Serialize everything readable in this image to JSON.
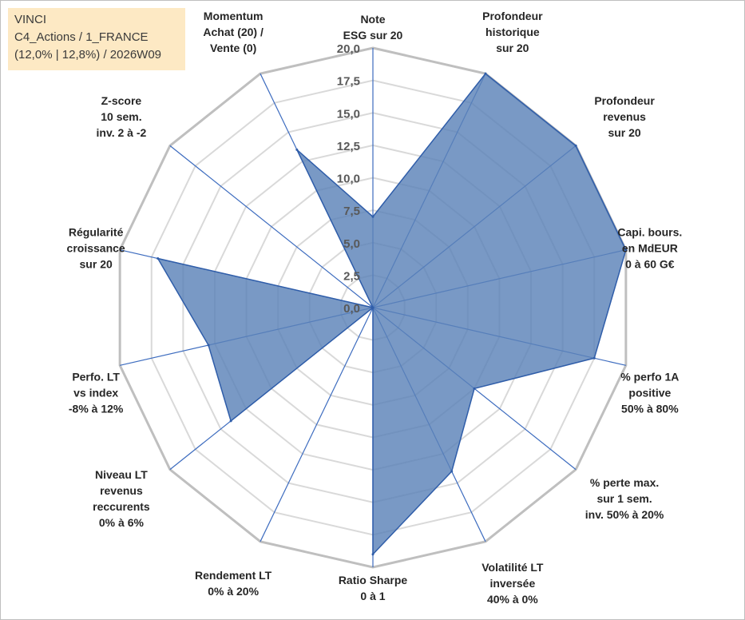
{
  "header": {
    "line1": "VINCI",
    "line2": "C4_Actions / 1_FRANCE",
    "line3": "(12,0% | 12,8%) / 2026W09"
  },
  "colors": {
    "fill": "#5b82b8",
    "stroke": "#2f5da9",
    "grid_outer": "#bfbfbf",
    "grid_inner": "#d9d9d9",
    "spoke": "#3d6cbf"
  },
  "chart_data": {
    "type": "radar",
    "title": "",
    "rmin": 0,
    "rmax": 20,
    "ticks": [
      "0,0",
      "2,5",
      "5,0",
      "7,5",
      "10,0",
      "12,5",
      "15,0",
      "17,5",
      "20,0"
    ],
    "axes": [
      {
        "label": [
          "Note",
          "ESG sur 20"
        ],
        "value": 7
      },
      {
        "label": [
          "Profondeur",
          "historique",
          "sur 20"
        ],
        "value": 20
      },
      {
        "label": [
          "Profondeur",
          "revenus",
          "sur 20"
        ],
        "value": 20
      },
      {
        "label": [
          "Capi. bours.",
          "en MdEUR",
          "0 à 60 G€"
        ],
        "value": 20
      },
      {
        "label": [
          "% perfo 1A",
          "positive",
          "50% à 80%"
        ],
        "value": 17.5
      },
      {
        "label": [
          "% perte max.",
          "sur 1 sem.",
          "inv. 50% à 20%"
        ],
        "value": 10
      },
      {
        "label": [
          "Volatilité LT",
          "inversée",
          "40% à 0%"
        ],
        "value": 14
      },
      {
        "label": [
          "Ratio Sharpe",
          "0 à 1"
        ],
        "value": 19
      },
      {
        "label": [
          "Rendement LT",
          "0% à 20%"
        ],
        "value": 0
      },
      {
        "label": [
          "Niveau LT",
          "revenus",
          "reccurents",
          "0% à 6%"
        ],
        "value": 14
      },
      {
        "label": [
          "Perfo. LT",
          "vs index",
          "-8% à 12%"
        ],
        "value": 13
      },
      {
        "label": [
          "Régularité",
          "croissance",
          "sur 20"
        ],
        "value": 17
      },
      {
        "label": [
          "Z-score",
          "10 sem.",
          "inv. 2 à -2"
        ],
        "value": 0
      },
      {
        "label": [
          "Momentum",
          "Achat (20) /",
          "Vente (0)"
        ],
        "value": 13.5
      }
    ]
  }
}
